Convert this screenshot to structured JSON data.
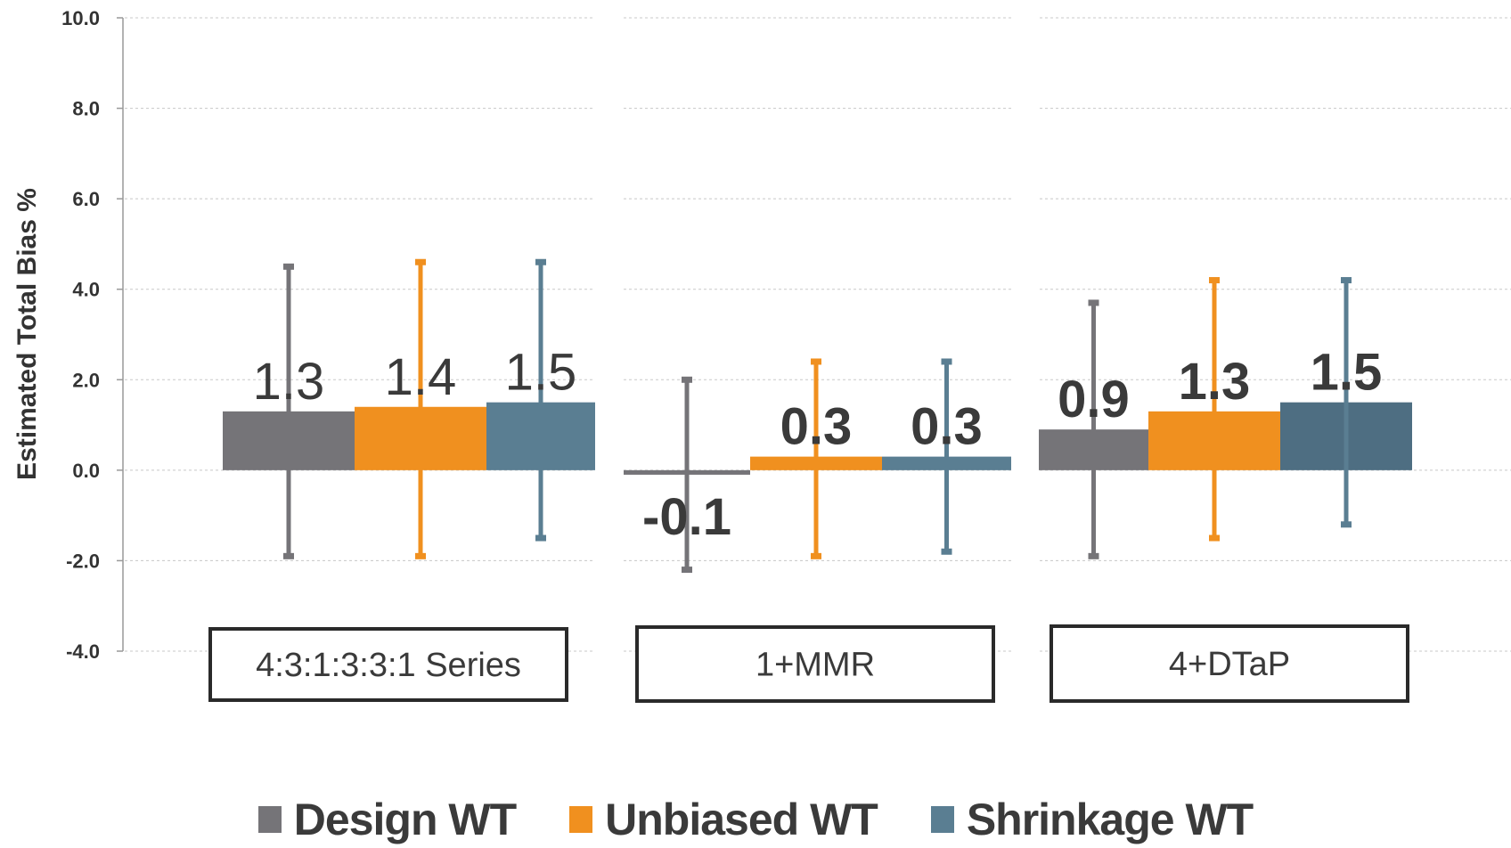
{
  "chart_data": {
    "type": "bar",
    "title": "",
    "ylabel": "Estimated Total Bias %",
    "xlabel": "",
    "ylim": [
      -4.0,
      10.0
    ],
    "yticks": [
      "10.0",
      "8.0",
      "6.0",
      "4.0",
      "2.0",
      "0.0",
      "-2.0",
      "-4.0"
    ],
    "ytick_values": [
      10,
      8,
      6,
      4,
      2,
      0,
      -2,
      -4
    ],
    "grid": true,
    "legend_position": "bottom",
    "categories": [
      "4:3:1:3:3:1 Series",
      "1+MMR",
      "4+DTaP"
    ],
    "series": [
      {
        "name": "Design WT",
        "color": "#757478",
        "values": [
          1.3,
          -0.1,
          0.9
        ],
        "labels": [
          "1.3",
          "-0.1",
          "0.9"
        ],
        "error_low": [
          -1.9,
          -2.2,
          -1.9
        ],
        "error_high": [
          4.5,
          2.0,
          3.7
        ]
      },
      {
        "name": "Unbiased WT",
        "color": "#F0901F",
        "values": [
          1.4,
          0.3,
          1.3
        ],
        "labels": [
          "1.4",
          "0.3",
          "1.3"
        ],
        "error_low": [
          -1.9,
          -1.9,
          -1.5
        ],
        "error_high": [
          4.6,
          2.4,
          4.2
        ]
      },
      {
        "name": "Shrinkage WT",
        "color": "#5A7E92",
        "values": [
          1.5,
          0.3,
          1.5
        ],
        "labels": [
          "1.5",
          "0.3",
          "1.5"
        ],
        "error_low": [
          -1.5,
          -1.8,
          -1.2
        ],
        "error_high": [
          4.6,
          2.4,
          4.2
        ]
      }
    ]
  }
}
